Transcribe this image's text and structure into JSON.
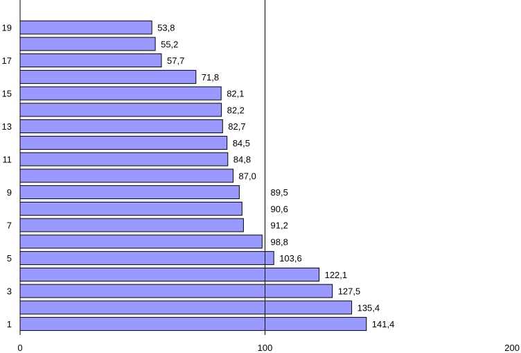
{
  "chart_data": {
    "type": "bar",
    "orientation": "horizontal",
    "categories": [
      "1",
      "2",
      "3",
      "4",
      "5",
      "6",
      "7",
      "8",
      "9",
      "10",
      "11",
      "12",
      "13",
      "14",
      "15",
      "16",
      "17",
      "18",
      "19",
      "20"
    ],
    "y_tick_labels": [
      "1",
      "3",
      "5",
      "7",
      "9",
      "11",
      "13",
      "15",
      "17",
      "19"
    ],
    "values": [
      141.4,
      135.4,
      127.5,
      122.1,
      103.6,
      98.8,
      91.2,
      90.6,
      89.5,
      87.0,
      84.8,
      84.5,
      82.7,
      82.2,
      82.1,
      71.8,
      57.7,
      55.2,
      53.8,
      null
    ],
    "data_labels": [
      "141,4",
      "135,4",
      "127,5",
      "122,1",
      "103,6",
      "98,8",
      "91,2",
      "90,6",
      "89,5",
      "87,0",
      "84,8",
      "84,5",
      "82,7",
      "82,2",
      "82,1",
      "71,8",
      "57,7",
      "55,2",
      "53,8",
      ""
    ],
    "x_ticks": [
      0,
      100,
      200
    ],
    "x_tick_labels": [
      "0",
      "100",
      "200"
    ],
    "xlim": [
      0,
      200
    ],
    "reference_line": 100,
    "title": "",
    "xlabel": "",
    "ylabel": "",
    "grid": false,
    "legend": "none",
    "colors": {
      "bar_fill": "#9999FF",
      "bar_stroke": "#000000",
      "axis": "#000000"
    }
  }
}
